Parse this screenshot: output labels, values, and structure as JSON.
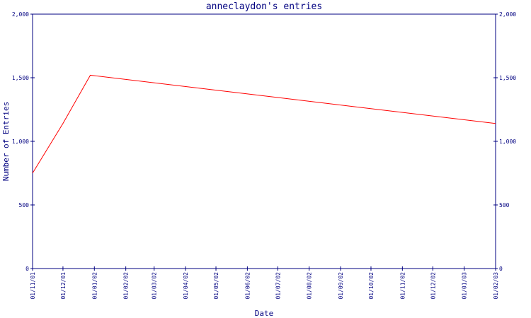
{
  "chart_data": {
    "type": "line",
    "title": "anneclaydon's entries",
    "xlabel": "Date",
    "ylabel": "Number of Entries",
    "ylim": [
      0,
      2000
    ],
    "yticks": [
      "0",
      "500",
      "1,000",
      "1,500",
      "2,000"
    ],
    "ytick_values": [
      0,
      500,
      1000,
      1500,
      2000
    ],
    "x_ticks": [
      "01/11/01",
      "01/12/01",
      "01/01/02",
      "01/02/02",
      "01/03/02",
      "01/04/02",
      "01/05/02",
      "01/06/02",
      "01/07/02",
      "01/08/02",
      "01/09/02",
      "01/10/02",
      "01/11/02",
      "01/12/02",
      "01/01/03",
      "01/02/03"
    ],
    "x_ticks_iso": [
      "2001-11-01",
      "2001-12-01",
      "2002-01-01",
      "2002-02-01",
      "2002-03-01",
      "2002-04-01",
      "2002-05-01",
      "2002-06-01",
      "2002-07-01",
      "2002-08-01",
      "2002-09-01",
      "2002-10-01",
      "2002-11-01",
      "2002-12-01",
      "2003-01-01",
      "2003-02-01"
    ],
    "series": [
      {
        "color": "#ff0000",
        "points": [
          {
            "x": "2001-11-01",
            "y": 750
          },
          {
            "x": "2001-12-01",
            "y": 1140
          },
          {
            "x": "2001-12-28",
            "y": 1520
          },
          {
            "x": "2003-02-01",
            "y": 1140
          }
        ]
      }
    ],
    "grid": false,
    "colors": {
      "axis": "#000080",
      "text": "#000080",
      "line": "#ff0000"
    }
  }
}
